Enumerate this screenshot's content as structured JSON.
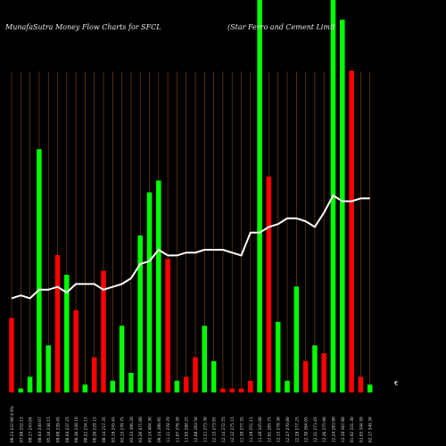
{
  "header": {
    "left": "MunafaSutra  Money Flow  Charts for SFCL",
    "right": "(Star Ferro   and Cement Limit"
  },
  "colors": {
    "background": "#000000",
    "up": "#00ff00",
    "down": "#ff0000",
    "line": "#ffffff",
    "grid": "#8b4513"
  },
  "chart_data": {
    "type": "bar",
    "ylim": [
      0,
      100
    ],
    "categories": [
      "09.23 247.60 8.9%",
      "07.08 252.15",
      "09.17 243.04",
      "08.03 240.07",
      "05.10 238.15",
      "09.08 239.45",
      "08.04 237.25",
      "08.30 238.10",
      "08.22 234.15",
      "08.20 229.15",
      "08.14 217.35",
      "03.16 245.45",
      "03.15 270.75",
      "03.23 306.20",
      "03.20 471.60",
      "03.14 404.30",
      "09.24 286.95",
      "11.11 278.70",
      "11.07 276.30",
      "11.05 288.25",
      "12.08 283.50",
      "11.21 273.30",
      "12.15 273.95",
      "12.14 272.55",
      "12.12 275.15",
      "11.30 277.35",
      "11.29 251.15",
      "11.28 345.80",
      "12.01 285.75",
      "12.15 278.30",
      "12.27 270.80",
      "12.28 277.25",
      "12.30 264.05",
      "12.31 273.45",
      "12.26 275.90",
      "12.24 283.90",
      "12.20 367.60",
      "01.02 341.30",
      "01.03 344.50",
      "02.17 340.30"
    ],
    "values": [
      19,
      1,
      4,
      62,
      12,
      35,
      30,
      21,
      2,
      9,
      31,
      3,
      17,
      5,
      40,
      51,
      54,
      34,
      3,
      4,
      9,
      17,
      8,
      1,
      1,
      1,
      3,
      100,
      55,
      18,
      3,
      27,
      8,
      12,
      10,
      100,
      95,
      82,
      4,
      2
    ],
    "directions": [
      "down",
      "up",
      "up",
      "up",
      "up",
      "down",
      "up",
      "down",
      "up",
      "down",
      "down",
      "up",
      "up",
      "up",
      "up",
      "up",
      "up",
      "down",
      "up",
      "down",
      "down",
      "up",
      "up",
      "down",
      "down",
      "down",
      "down",
      "up",
      "down",
      "up",
      "up",
      "up",
      "down",
      "up",
      "down",
      "up",
      "up",
      "down",
      "down",
      "up"
    ],
    "line": [
      33,
      34,
      33,
      36,
      36,
      37,
      35,
      38,
      38,
      38,
      36,
      37,
      38,
      40,
      45,
      46,
      50,
      48,
      48,
      49,
      49,
      50,
      50,
      50,
      49,
      48,
      56,
      56,
      58,
      59,
      61,
      61,
      60,
      58,
      63,
      69,
      67,
      67,
      68,
      68
    ],
    "last_marker": "€"
  }
}
